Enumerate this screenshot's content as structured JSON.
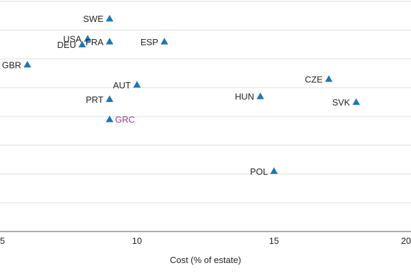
{
  "chart_data": {
    "type": "scatter",
    "title": "",
    "xlabel": "Cost (% of estate)",
    "ylabel": "",
    "xlim": [
      5,
      20
    ],
    "ylim": [
      0,
      8
    ],
    "x_ticks": [
      5,
      10,
      15,
      20
    ],
    "x_tick_labels": [
      "5",
      "10",
      "15",
      "20"
    ],
    "gridlines_y": [
      1,
      2,
      3,
      4,
      5,
      6,
      7,
      8
    ],
    "grid": true,
    "marker": "triangle",
    "marker_color": "#1f77b4",
    "label_color_default": "#222222",
    "label_color_highlight": "#9b3b8f",
    "points": [
      {
        "label": "SWE",
        "x": 9.0,
        "y": 7.4,
        "anchor": "left"
      },
      {
        "label": "USA",
        "x": 8.2,
        "y": 6.7,
        "anchor": "left"
      },
      {
        "label": "FRA",
        "x": 9.0,
        "y": 6.6,
        "anchor": "left"
      },
      {
        "label": "DEU",
        "x": 8.0,
        "y": 6.5,
        "anchor": "left"
      },
      {
        "label": "ESP",
        "x": 11.0,
        "y": 6.6,
        "anchor": "left"
      },
      {
        "label": "GBR",
        "x": 6.0,
        "y": 5.8,
        "anchor": "left"
      },
      {
        "label": "AUT",
        "x": 10.0,
        "y": 5.1,
        "anchor": "left"
      },
      {
        "label": "CZE",
        "x": 17.0,
        "y": 5.3,
        "anchor": "left"
      },
      {
        "label": "HUN",
        "x": 14.5,
        "y": 4.7,
        "anchor": "left"
      },
      {
        "label": "SVK",
        "x": 18.0,
        "y": 4.5,
        "anchor": "left"
      },
      {
        "label": "PRT",
        "x": 9.0,
        "y": 4.6,
        "anchor": "left"
      },
      {
        "label": "GRC",
        "x": 9.0,
        "y": 3.9,
        "anchor": "right",
        "highlight": true
      },
      {
        "label": "POL",
        "x": 15.0,
        "y": 2.1,
        "anchor": "left"
      }
    ]
  }
}
